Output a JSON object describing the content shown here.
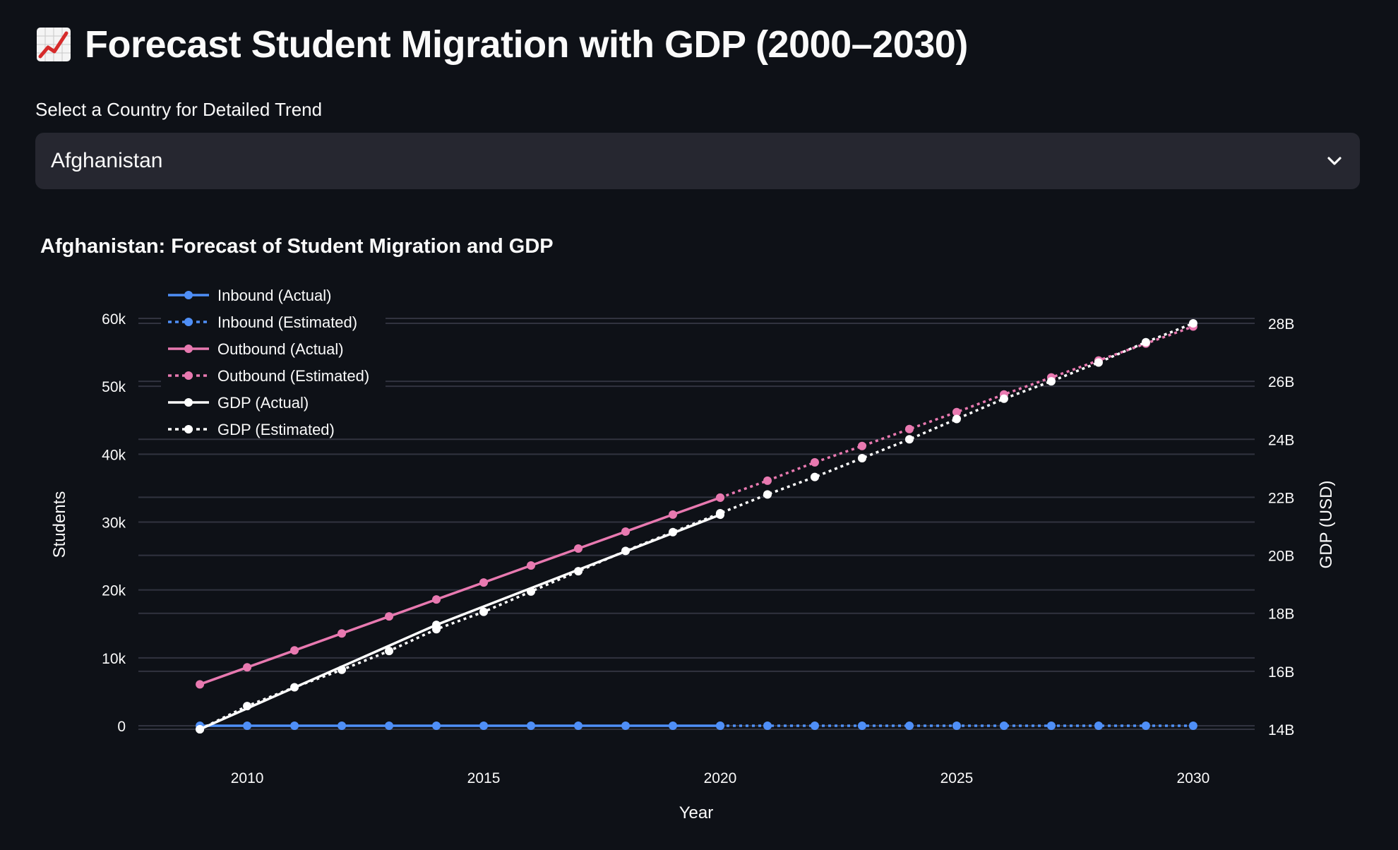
{
  "page": {
    "title": "Forecast Student Migration with GDP (2000–2030)",
    "title_icon": "chart-increasing-icon"
  },
  "selector": {
    "label": "Select a Country for Detailed Trend",
    "selected": "Afghanistan",
    "icon": "chevron-down-icon"
  },
  "colors": {
    "background": "#0e1117",
    "select_bg": "#262730",
    "inbound": "#4f8ff7",
    "outbound": "#e879b0",
    "gdp": "#ffffff",
    "grid": "#31333f"
  },
  "chart_data": {
    "type": "line",
    "title": "Afghanistan: Forecast of Student Migration and GDP",
    "xlabel": "Year",
    "ylabel": "Students",
    "y2label": "GDP (USD)",
    "xlim": [
      2007.7,
      2031.3
    ],
    "ylim": [
      0,
      60000
    ],
    "y2lim": [
      14000000000,
      28000000000
    ],
    "x_ticks": [
      2010,
      2015,
      2020,
      2025,
      2030
    ],
    "y_ticks": [
      0,
      10000,
      20000,
      30000,
      40000,
      50000,
      60000
    ],
    "y_tick_labels": [
      "0",
      "10k",
      "20k",
      "30k",
      "40k",
      "50k",
      "60k"
    ],
    "y2_ticks": [
      14000000000,
      16000000000,
      18000000000,
      20000000000,
      22000000000,
      24000000000,
      26000000000,
      28000000000
    ],
    "y2_tick_labels": [
      "14B",
      "16B",
      "18B",
      "20B",
      "22B",
      "24B",
      "26B",
      "28B"
    ],
    "grid": true,
    "legend_position": "top-left",
    "series": [
      {
        "name": "Inbound (Actual)",
        "axis": "y",
        "style": "solid",
        "color": "#4f8ff7",
        "x": [
          2009,
          2010,
          2011,
          2012,
          2013,
          2014,
          2015,
          2016,
          2017,
          2018,
          2019,
          2020
        ],
        "values": [
          0,
          0,
          0,
          0,
          0,
          0,
          0,
          0,
          0,
          0,
          0,
          0
        ]
      },
      {
        "name": "Inbound (Estimated)",
        "axis": "y",
        "style": "dotted",
        "color": "#4f8ff7",
        "x": [
          2020,
          2021,
          2022,
          2023,
          2024,
          2025,
          2026,
          2027,
          2028,
          2029,
          2030
        ],
        "values": [
          0,
          0,
          0,
          0,
          0,
          0,
          0,
          0,
          0,
          0,
          0
        ]
      },
      {
        "name": "Outbound (Actual)",
        "axis": "y",
        "style": "solid",
        "color": "#e879b0",
        "x": [
          2009,
          2010,
          2011,
          2012,
          2013,
          2014,
          2015,
          2016,
          2017,
          2018,
          2019,
          2020
        ],
        "values": [
          6100,
          8600,
          11100,
          13600,
          16100,
          18600,
          21100,
          23600,
          26100,
          28600,
          31100,
          33600
        ]
      },
      {
        "name": "Outbound (Estimated)",
        "axis": "y",
        "style": "dotted",
        "color": "#e879b0",
        "x": [
          2020,
          2021,
          2022,
          2023,
          2024,
          2025,
          2026,
          2027,
          2028,
          2029,
          2030
        ],
        "values": [
          33600,
          36100,
          38800,
          41200,
          43700,
          46200,
          48800,
          51300,
          53800,
          56300,
          58800
        ]
      },
      {
        "name": "GDP (Actual)",
        "axis": "y2",
        "style": "solid",
        "color": "#ffffff",
        "x": [
          2009,
          2014,
          2020
        ],
        "values": [
          14000000000,
          17600000000,
          21400000000
        ]
      },
      {
        "name": "GDP (Estimated)",
        "axis": "y2",
        "style": "dotted",
        "color": "#ffffff",
        "x": [
          2009,
          2010,
          2011,
          2012,
          2013,
          2014,
          2015,
          2016,
          2017,
          2018,
          2019,
          2020,
          2021,
          2022,
          2023,
          2024,
          2025,
          2026,
          2027,
          2028,
          2029,
          2030
        ],
        "values": [
          14000000000,
          14800000000,
          15450000000,
          16050000000,
          16700000000,
          17450000000,
          18050000000,
          18750000000,
          19450000000,
          20150000000,
          20800000000,
          21450000000,
          22100000000,
          22700000000,
          23350000000,
          24000000000,
          24700000000,
          25400000000,
          26000000000,
          26650000000,
          27350000000,
          28000000000
        ]
      }
    ]
  }
}
